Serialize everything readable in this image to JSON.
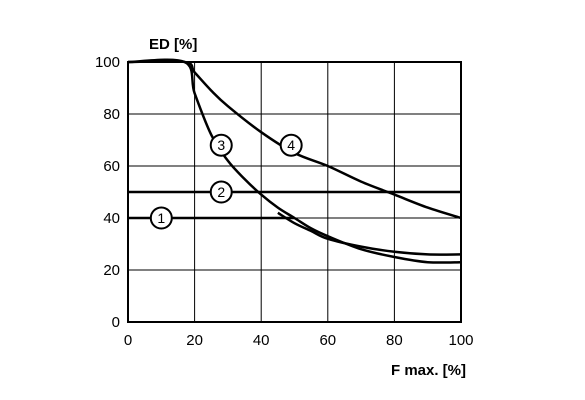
{
  "chart_data": {
    "type": "line",
    "title": "",
    "xlabel": "F max. [%]",
    "ylabel": "ED [%]",
    "xlim": [
      0,
      100
    ],
    "ylim": [
      0,
      100
    ],
    "xticks": [
      "0",
      "20",
      "40",
      "60",
      "80",
      "100"
    ],
    "yticks": [
      "0",
      "20",
      "40",
      "60",
      "80",
      "100"
    ],
    "grid": true,
    "legend": "none",
    "series": [
      {
        "label": "1",
        "x": [
          0,
          50
        ],
        "y": [
          40,
          40
        ],
        "label_at": [
          10,
          40
        ]
      },
      {
        "label": "2",
        "x": [
          0,
          100
        ],
        "y": [
          50,
          50
        ],
        "label_at": [
          28,
          50
        ]
      },
      {
        "label": "3",
        "x": [
          0,
          17,
          20,
          25,
          30,
          35,
          40,
          45,
          50,
          55,
          60,
          70,
          80,
          90,
          100
        ],
        "y": [
          100,
          100,
          88,
          72,
          62,
          55,
          49,
          44,
          40,
          36,
          33,
          28,
          25,
          23,
          23
        ],
        "label_at": [
          28,
          68
        ]
      },
      {
        "label": "4",
        "x": [
          0,
          17,
          20,
          25,
          30,
          40,
          50,
          60,
          70,
          80,
          90,
          100
        ],
        "y": [
          100,
          100,
          96,
          89,
          83,
          73,
          65,
          60,
          54,
          49,
          44,
          40
        ],
        "label_at": [
          49,
          68
        ]
      },
      {
        "label": "",
        "x": [
          45,
          50,
          55,
          60,
          70,
          80,
          90,
          100
        ],
        "y": [
          42,
          38,
          35,
          32,
          29,
          27,
          26,
          26
        ]
      }
    ]
  }
}
